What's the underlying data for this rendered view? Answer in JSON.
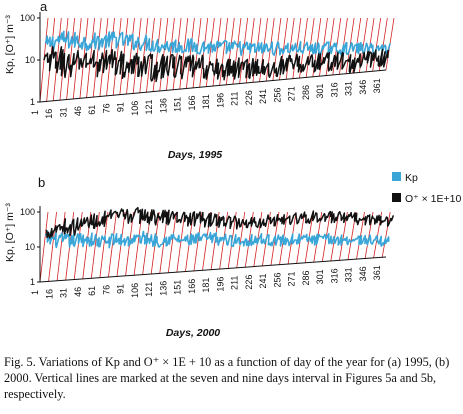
{
  "colors": {
    "kp": "#3aa6d8",
    "oplus": "#111111",
    "vline": "#d32020",
    "axis": "#111111"
  },
  "legend": [
    {
      "label": "Kp",
      "color": "#3aa6d8"
    },
    {
      "label": "O⁺ × 1E+10",
      "color": "#111111"
    }
  ],
  "caption": "Fig. 5. Variations of Kp and O⁺ × 1E + 10 as a function of day of the year for (a) 1995, (b) 2000. Vertical lines are marked at the seven and nine days interval in Figures 5a and 5b, respectively.",
  "chart_data": [
    {
      "panel_label": "a",
      "type": "line",
      "xlabel": "Days, 1995",
      "ylabel": "Kp, [O⁺] m⁻³",
      "yscale": "log",
      "ylim": [
        1,
        100
      ],
      "yticks": [
        1,
        10,
        100
      ],
      "xticks": [
        1,
        16,
        31,
        46,
        61,
        76,
        91,
        106,
        121,
        136,
        151,
        166,
        181,
        196,
        211,
        226,
        241,
        256,
        271,
        286,
        301,
        316,
        331,
        346,
        361
      ],
      "vertical_line_interval_days": 7,
      "series": [
        {
          "name": "Kp",
          "color": "#3aa6d8",
          "x": [
            1,
            15,
            30,
            45,
            60,
            75,
            90,
            105,
            120,
            135,
            150,
            165,
            180,
            195,
            210,
            225,
            240,
            255,
            270,
            285,
            300,
            315,
            330,
            345,
            360
          ],
          "values": [
            22,
            30,
            28,
            25,
            26,
            28,
            24,
            22,
            18,
            17,
            16,
            15,
            14,
            13,
            12,
            11,
            11,
            10,
            10,
            9,
            9,
            8,
            8,
            7,
            7
          ]
        },
        {
          "name": "O⁺ × 1E+10",
          "color": "#111111",
          "x": [
            1,
            15,
            30,
            45,
            60,
            75,
            90,
            105,
            120,
            135,
            150,
            165,
            180,
            195,
            210,
            225,
            240,
            255,
            270,
            285,
            300,
            315,
            330,
            345,
            360
          ],
          "values": [
            8,
            10,
            6,
            9,
            7,
            8,
            5,
            6,
            4,
            5,
            4,
            4,
            3,
            3,
            3,
            3,
            2,
            3,
            3,
            3,
            3,
            3,
            2,
            3,
            3
          ]
        }
      ]
    },
    {
      "panel_label": "b",
      "type": "line",
      "xlabel": "Days, 2000",
      "ylabel": "Kp, [O⁺] m⁻³",
      "yscale": "log",
      "ylim": [
        1,
        100
      ],
      "yticks": [
        1,
        10,
        100
      ],
      "xticks": [
        1,
        16,
        31,
        46,
        61,
        76,
        91,
        106,
        121,
        136,
        151,
        166,
        181,
        196,
        211,
        226,
        241,
        256,
        271,
        286,
        301,
        316,
        331,
        346,
        361
      ],
      "vertical_line_interval_days": 9,
      "series": [
        {
          "name": "Kp",
          "color": "#3aa6d8",
          "x": [
            1,
            15,
            30,
            45,
            60,
            75,
            90,
            105,
            120,
            135,
            150,
            165,
            180,
            195,
            210,
            225,
            240,
            255,
            270,
            285,
            300,
            315,
            330,
            345,
            360
          ],
          "values": [
            18,
            15,
            14,
            16,
            12,
            14,
            13,
            15,
            12,
            13,
            11,
            12,
            12,
            10,
            9,
            10,
            9,
            8,
            9,
            8,
            8,
            7,
            7,
            6,
            5
          ]
        },
        {
          "name": "O⁺ × 1E+10",
          "color": "#111111",
          "x": [
            1,
            15,
            30,
            45,
            60,
            75,
            90,
            105,
            120,
            135,
            150,
            165,
            180,
            195,
            210,
            225,
            240,
            255,
            270,
            285,
            300,
            315,
            330,
            345,
            360
          ],
          "values": [
            25,
            40,
            35,
            50,
            60,
            70,
            80,
            75,
            65,
            70,
            60,
            55,
            50,
            45,
            40,
            45,
            50,
            55,
            60,
            65,
            60,
            55,
            50,
            45,
            40
          ]
        }
      ]
    }
  ]
}
